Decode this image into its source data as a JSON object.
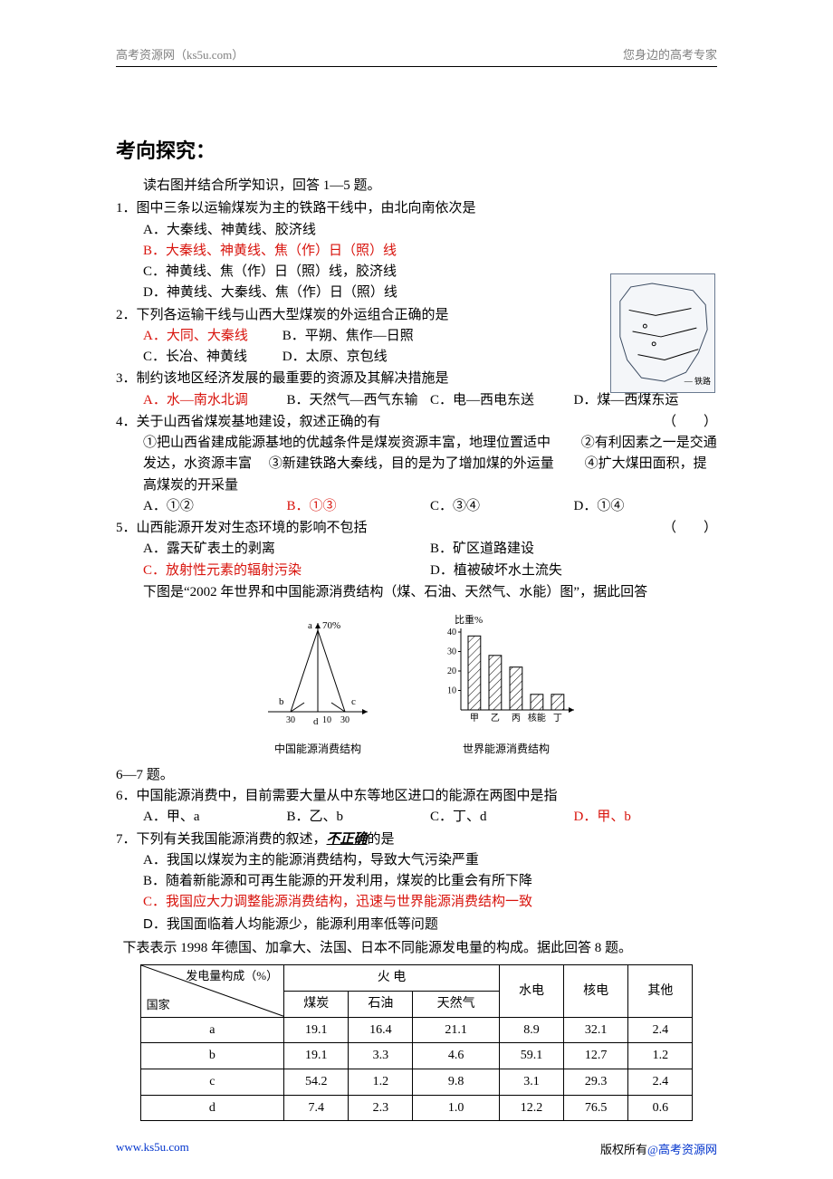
{
  "colors": {
    "text": "#000000",
    "red": "#d8130c",
    "gray": "#808080",
    "link_blue": "#0033cc",
    "map_border": "#6a7a90",
    "map_bg": "#f4f6f9",
    "bar_fill": "#ffffff",
    "bar_stroke": "#000000",
    "bar_hatch": "#000000"
  },
  "header": {
    "left": "高考资源网（ks5u.com）",
    "right": "您身边的高考专家"
  },
  "footer": {
    "left": "www.ks5u.com",
    "right_pre": "版权所有",
    "right_at": "@高考资源网"
  },
  "title": "考向探究：",
  "intro": "读右图并结合所学知识，回答 1—5 题。",
  "q1": {
    "stem": "1．图中三条以运输煤炭为主的铁路干线中，由北向南依次是",
    "A": "A．大秦线、神黄线、胶济线",
    "B": "B．大秦线、神黄线、焦（作）日（照）线",
    "C": "C．神黄线、焦（作）日（照）线，胶济线",
    "D": "D．神黄线、大秦线、焦（作）日（照）线"
  },
  "q2": {
    "stem": "2．下列各运输干线与山西大型煤炭的外运组合正确的是",
    "A": "A．大同、大秦线",
    "B": "B．平朔、焦作—日照",
    "C": "C．长冶、神黄线",
    "D": "D．太原、京包线"
  },
  "q3": {
    "stem": "3．制约该地区经济发展的最重要的资源及其解决措施是",
    "A": "A．水—南水北调",
    "B": "B．天然气—西气东输",
    "C": "C．电—西电东送",
    "D": "D．煤—西煤东运"
  },
  "q4": {
    "stem": "4．关于山西省煤炭基地建设，叙述正确的有",
    "body": "把山西省建成能源基地的优越条件是煤炭资源丰富，地理位置适中　　　有利因素之一是交通发达，水资源丰富　　新建铁路大秦线，目的是为了增加煤的外运量　　　扩大煤田面积，提高煤炭的开采量",
    "seg1": "①把山西省建成能源基地的优越条件是煤炭资源丰富，地理位置适中",
    "seg2": "②有利因素之一是交通发达，水资源丰富",
    "seg3": "③新建铁路大秦线，目的是为了增加煤的外运量",
    "seg4": "④扩大煤田面积，提高煤炭的开采量",
    "A": "A．①②",
    "B": "B．①③",
    "C": "C．③④",
    "D": "D．①④"
  },
  "q5": {
    "stem": "5．山西能源开发对生态环境的影响不包括",
    "A": "A．露天矿表土的剥离",
    "B": "B．矿区道路建设",
    "C": "C．放射性元素的辐射污染",
    "D": "D．植被破坏水土流失"
  },
  "fig_intro": "下图是“2002 年世界和中国能源消费结构（煤、石油、天然气、水能）图”，据此回答",
  "fig_footer": "6—7 题。",
  "triangle_chart": {
    "type": "triangle",
    "caption": "中国能源消费结构",
    "top_label": "a",
    "top_tick": "70%",
    "left_label": "b",
    "right_label": "c",
    "bottom_label": "d",
    "x_ticks": [
      "30",
      "10",
      "30"
    ],
    "stroke": "#000000",
    "fontsize": 11
  },
  "bar_chart": {
    "type": "bar",
    "caption": "世界能源消费结构",
    "y_label": "比重%",
    "categories": [
      "甲",
      "乙",
      "丙",
      "核能",
      "丁"
    ],
    "values": [
      38,
      28,
      22,
      8,
      8
    ],
    "ylim": [
      0,
      40
    ],
    "ytick_step": 10,
    "bar_fill": "#ffffff",
    "bar_stroke": "#000000",
    "hatch": "diagonal",
    "bar_width": 0.6,
    "axis_color": "#000000",
    "fontsize": 11
  },
  "q6": {
    "stem": "6．中国能源消费中，目前需要大量从中东等地区进口的能源在两图中是指",
    "A": "A．甲、a",
    "B": "B．乙、b",
    "C": "C．丁、d",
    "D": "D．甲、b"
  },
  "q7": {
    "stem_pre": "7．下列有关我国能源消费的叙述，",
    "stem_em": "不正确",
    "stem_post": "的是",
    "A": "A．我国以煤炭为主的能源消费结构，导致大气污染严重",
    "B": "B．随着新能源和可再生能源的开发利用，煤炭的比重会有所下降",
    "C": "C．我国应大力调整能源消费结构，迅速与世界能源消费结构一致",
    "D": "D．我国面临着人均能源少，能源利用率低等问题"
  },
  "table_intro": "下表表示 1998 年德国、加拿大、法国、日本不同能源发电量的构成。据此回答 8 题。",
  "table": {
    "header_tl": "发电量构成（%）",
    "header_bl": "国家",
    "col_group": "火 电",
    "cols_sub": [
      "煤炭",
      "石油",
      "天然气"
    ],
    "cols_tail": [
      "水电",
      "核电",
      "其他"
    ],
    "rows": [
      {
        "label": "a",
        "cells": [
          "19.1",
          "16.4",
          "21.1",
          "8.9",
          "32.1",
          "2.4"
        ]
      },
      {
        "label": "b",
        "cells": [
          "19.1",
          "3.3",
          "4.6",
          "59.1",
          "12.7",
          "1.2"
        ]
      },
      {
        "label": "c",
        "cells": [
          "54.2",
          "1.2",
          "9.8",
          "3.1",
          "29.3",
          "2.4"
        ]
      },
      {
        "label": "d",
        "cells": [
          "7.4",
          "2.3",
          "1.0",
          "12.2",
          "76.5",
          "0.6"
        ]
      }
    ],
    "col_widths_pct": [
      26,
      11,
      11,
      12,
      12,
      12,
      10
    ],
    "border_color": "#000000",
    "fontsize": 14
  }
}
